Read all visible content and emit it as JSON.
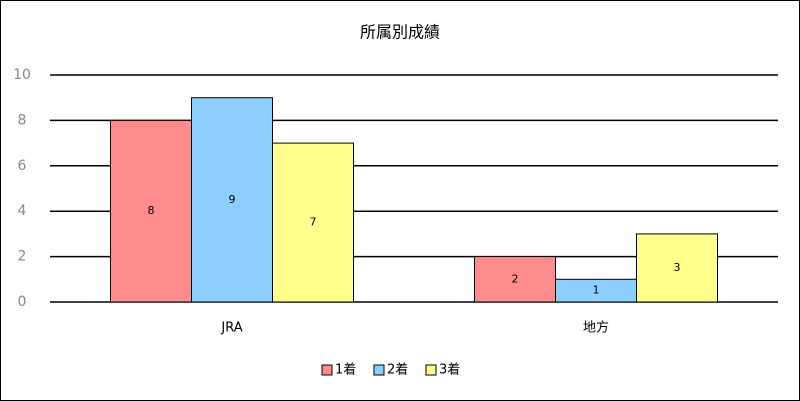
{
  "chart_data": {
    "type": "bar",
    "title": "所属別成績",
    "categories": [
      "JRA",
      "地方"
    ],
    "series": [
      {
        "name": "1着",
        "color": "#ff8c8c",
        "values": [
          8,
          2
        ]
      },
      {
        "name": "2着",
        "color": "#8ccfff",
        "values": [
          9,
          1
        ]
      },
      {
        "name": "3着",
        "color": "#ffff8c",
        "values": [
          7,
          3
        ]
      }
    ],
    "ylim": [
      0,
      10
    ],
    "yticks": [
      0,
      2,
      4,
      6,
      8,
      10
    ],
    "grid": true,
    "legend": "bottom"
  }
}
